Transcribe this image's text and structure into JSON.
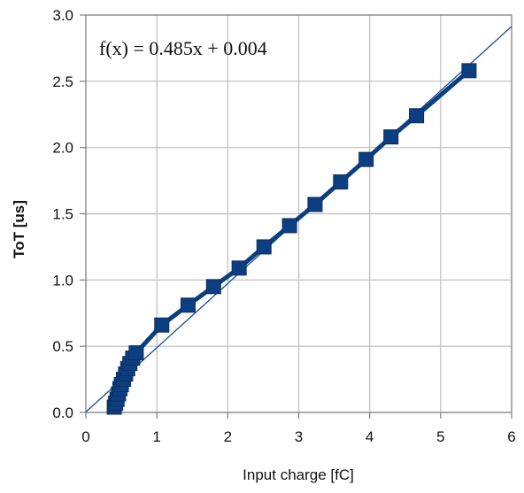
{
  "chart_data": {
    "type": "scatter",
    "title": "",
    "xlabel": "Input charge [fC]",
    "ylabel": "ToT [us]",
    "xlim": [
      0,
      6
    ],
    "ylim": [
      0,
      3.0
    ],
    "x_ticks": [
      0,
      1,
      2,
      3,
      4,
      5,
      6
    ],
    "x_tick_labels": [
      "0",
      "1",
      "2",
      "3",
      "4",
      "5",
      "6"
    ],
    "y_ticks": [
      0,
      0.5,
      1.0,
      1.5,
      2.0,
      2.5,
      3.0
    ],
    "y_tick_labels": [
      "0.0",
      "0.5",
      "1.0",
      "1.5",
      "2.0",
      "2.5",
      "3.0"
    ],
    "grid": true,
    "colors": {
      "series": "#0d3f80",
      "fit": "#1a4f8e",
      "grid": "#bdbdbd",
      "frame": "#7f7f7f"
    },
    "series": [
      {
        "marker": "square",
        "points": [
          [
            0.4,
            0.04
          ],
          [
            0.42,
            0.07
          ],
          [
            0.44,
            0.1
          ],
          [
            0.46,
            0.14
          ],
          [
            0.48,
            0.18
          ],
          [
            0.5,
            0.21
          ],
          [
            0.53,
            0.25
          ],
          [
            0.56,
            0.29
          ],
          [
            0.59,
            0.33
          ],
          [
            0.62,
            0.37
          ],
          [
            0.66,
            0.41
          ],
          [
            0.71,
            0.45
          ],
          [
            1.07,
            0.66
          ],
          [
            1.44,
            0.81
          ],
          [
            1.8,
            0.95
          ],
          [
            2.16,
            1.09
          ],
          [
            2.51,
            1.25
          ],
          [
            2.87,
            1.41
          ],
          [
            3.23,
            1.57
          ],
          [
            3.59,
            1.74
          ],
          [
            3.95,
            1.91
          ],
          [
            4.3,
            2.08
          ],
          [
            4.66,
            2.24
          ],
          [
            5.4,
            2.58
          ]
        ]
      }
    ],
    "fit": {
      "slope": 0.485,
      "intercept": 0.004,
      "x_range": [
        0,
        6
      ]
    },
    "annotation": "f(x) = 0.485x + 0.004"
  }
}
